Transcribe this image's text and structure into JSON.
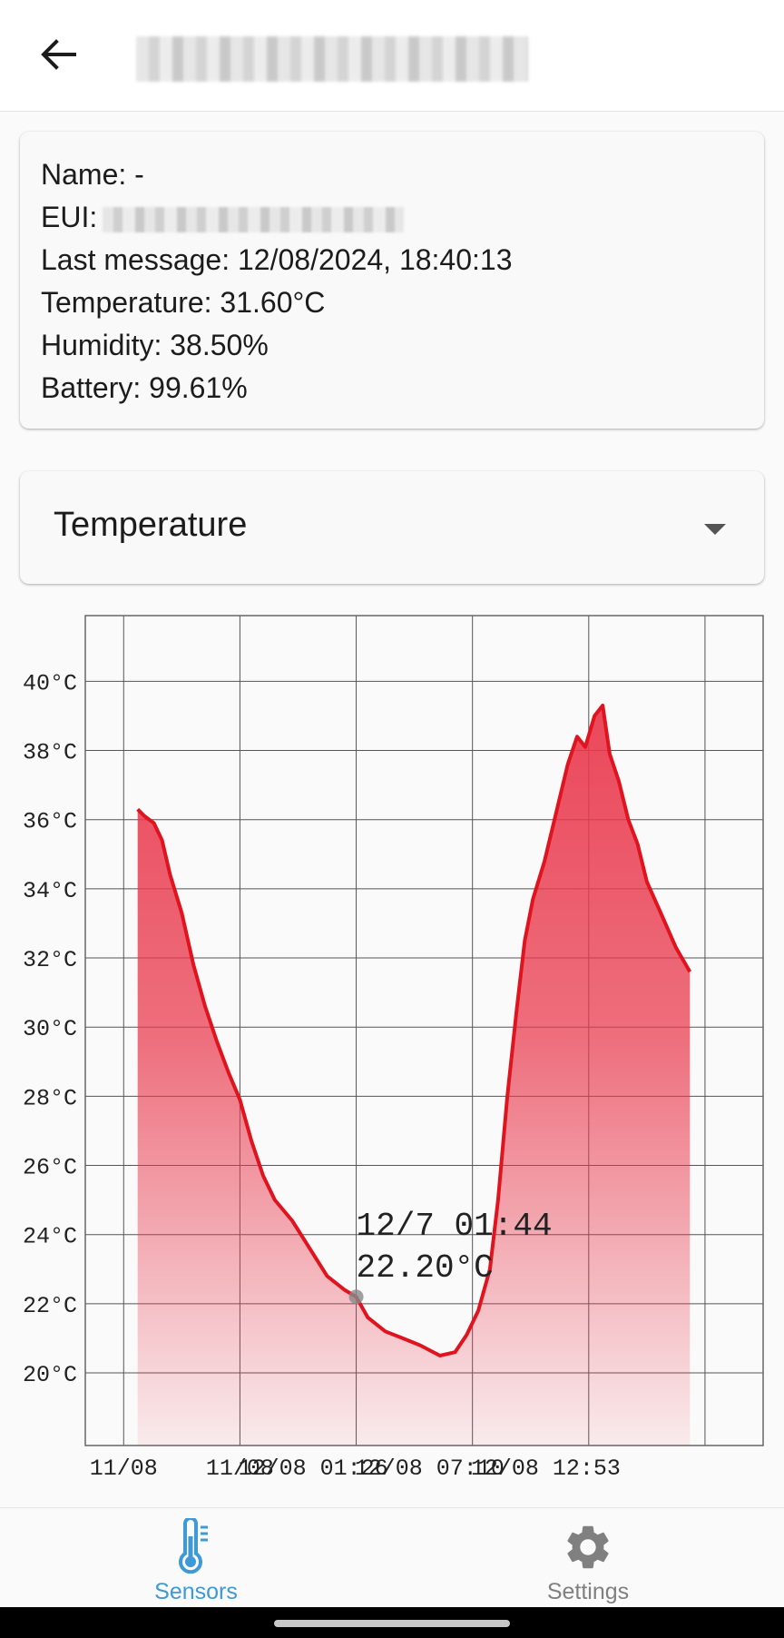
{
  "app_bar": {
    "back_icon": "arrow-left-icon"
  },
  "info": {
    "name_label": "Name: -",
    "eui_label": "EUI:",
    "last_message": "Last message: 12/08/2024, 18:40:13",
    "temperature": "Temperature: 31.60°C",
    "humidity": "Humidity: 38.50%",
    "battery": "Battery: 99.61%"
  },
  "metric_select": {
    "selected": "Temperature",
    "icon": "dropdown-triangle-icon"
  },
  "tooltip": {
    "time": "12/7 01:44",
    "value": "22.20°C",
    "x": 2.0,
    "y": 22.2
  },
  "chart_data": {
    "type": "area",
    "title": "",
    "xlabel": "",
    "ylabel": "",
    "ylim": [
      17.9,
      41.9
    ],
    "xlim": [
      -0.33,
      5.5
    ],
    "grid": true,
    "x_tick_labels": [
      "11/08",
      "11/08",
      "12/08 01:26",
      "12/08 07:10",
      "12/08 12:53"
    ],
    "x_tick_positions": [
      0,
      1,
      1.63,
      2.63,
      3.63
    ],
    "y_ticks": [
      20,
      22,
      24,
      26,
      28,
      30,
      32,
      34,
      36,
      38,
      40
    ],
    "y_tick_format": "{v}°C",
    "series": [
      {
        "line_color": "#e0141e",
        "fill_color": "#e9384c",
        "points": [
          [
            0.12,
            36.3
          ],
          [
            0.18,
            36.1
          ],
          [
            0.26,
            35.9
          ],
          [
            0.33,
            35.4
          ],
          [
            0.4,
            34.4
          ],
          [
            0.5,
            33.3
          ],
          [
            0.6,
            31.8
          ],
          [
            0.7,
            30.6
          ],
          [
            0.8,
            29.6
          ],
          [
            0.9,
            28.7
          ],
          [
            1.0,
            27.9
          ],
          [
            1.1,
            26.7
          ],
          [
            1.2,
            25.7
          ],
          [
            1.3,
            25.0
          ],
          [
            1.45,
            24.4
          ],
          [
            1.6,
            23.6
          ],
          [
            1.75,
            22.8
          ],
          [
            1.9,
            22.4
          ],
          [
            2.0,
            22.2
          ],
          [
            2.1,
            21.6
          ],
          [
            2.25,
            21.2
          ],
          [
            2.4,
            21.0
          ],
          [
            2.55,
            20.8
          ],
          [
            2.72,
            20.5
          ],
          [
            2.85,
            20.6
          ],
          [
            2.95,
            21.1
          ],
          [
            3.05,
            21.8
          ],
          [
            3.15,
            23.0
          ],
          [
            3.22,
            25.0
          ],
          [
            3.3,
            28.0
          ],
          [
            3.38,
            30.5
          ],
          [
            3.45,
            32.5
          ],
          [
            3.52,
            33.7
          ],
          [
            3.62,
            34.8
          ],
          [
            3.72,
            36.2
          ],
          [
            3.82,
            37.6
          ],
          [
            3.9,
            38.4
          ],
          [
            3.97,
            38.1
          ],
          [
            4.05,
            39.0
          ],
          [
            4.12,
            39.3
          ],
          [
            4.18,
            37.9
          ],
          [
            4.26,
            37.1
          ],
          [
            4.34,
            36.0
          ],
          [
            4.42,
            35.3
          ],
          [
            4.5,
            34.2
          ],
          [
            4.62,
            33.3
          ],
          [
            4.75,
            32.3
          ],
          [
            4.87,
            31.6
          ]
        ]
      }
    ]
  },
  "bottom_nav": {
    "items": [
      {
        "label": "Sensors",
        "icon": "thermometer-icon",
        "active": true
      },
      {
        "label": "Settings",
        "icon": "gear-icon",
        "active": false
      }
    ],
    "active_color": "#3d9ad6",
    "inactive_color": "#808080"
  }
}
